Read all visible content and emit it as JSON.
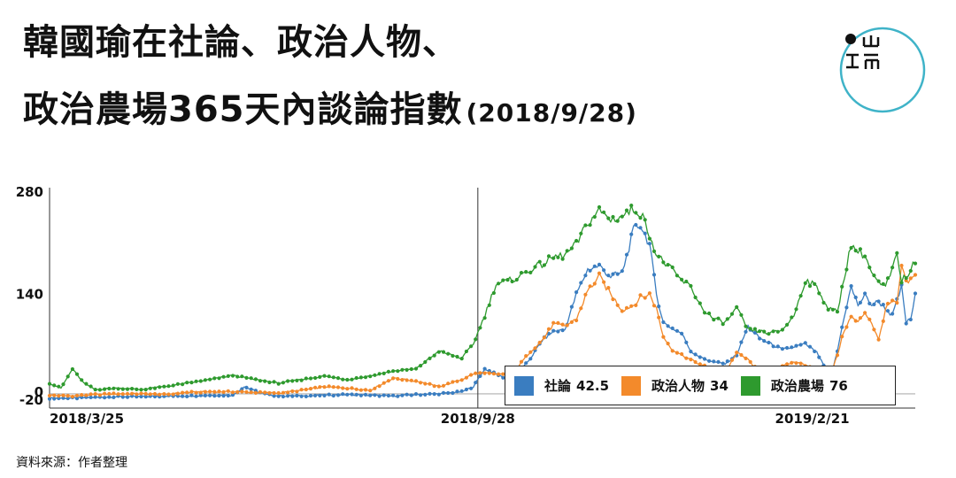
{
  "title": {
    "line1": "韓國瑜在社論、政治人物、",
    "line2": "政治農場365天內談論指數",
    "date": "(2018/9/28)"
  },
  "source": "資料來源：作者整理",
  "logo": {
    "icon": "publisher-logo"
  },
  "chart_data": {
    "type": "line",
    "title": "韓國瑜在社論、政治人物、政治農場365天內談論指數 (2018/9/28)",
    "xlabel": "",
    "ylabel": "",
    "ylim": [
      -20,
      280
    ],
    "yticks": [
      "280",
      "140",
      "0",
      "-20"
    ],
    "x_start": "2018/3/25",
    "x_end": "2019/3/24",
    "xticks": [
      {
        "label": "2018/3/25",
        "day": 0
      },
      {
        "label": "2018/9/28",
        "day": 187
      },
      {
        "label": "2019/2/21",
        "day": 333
      }
    ],
    "reference_line": {
      "date": "2018/9/28",
      "day": 187
    },
    "grid": false,
    "legend_position": "bottom-right",
    "series": [
      {
        "name": "社論",
        "legend_value": "42.5",
        "color": "#3a7dc0",
        "points": [
          [
            0,
            -6
          ],
          [
            10,
            -6
          ],
          [
            20,
            -5
          ],
          [
            30,
            -4
          ],
          [
            40,
            -4
          ],
          [
            50,
            -3
          ],
          [
            60,
            -3
          ],
          [
            70,
            -2
          ],
          [
            80,
            -2
          ],
          [
            85,
            10
          ],
          [
            90,
            4
          ],
          [
            95,
            -1
          ],
          [
            100,
            -3
          ],
          [
            110,
            -3
          ],
          [
            120,
            -2
          ],
          [
            130,
            -1
          ],
          [
            140,
            -2
          ],
          [
            150,
            -3
          ],
          [
            160,
            -1
          ],
          [
            170,
            0
          ],
          [
            180,
            3
          ],
          [
            185,
            10
          ],
          [
            190,
            35
          ],
          [
            195,
            28
          ],
          [
            200,
            20
          ],
          [
            205,
            30
          ],
          [
            210,
            50
          ],
          [
            215,
            75
          ],
          [
            220,
            88
          ],
          [
            225,
            90
          ],
          [
            230,
            140
          ],
          [
            235,
            175
          ],
          [
            240,
            180
          ],
          [
            245,
            165
          ],
          [
            250,
            170
          ],
          [
            255,
            230
          ],
          [
            258,
            238
          ],
          [
            262,
            210
          ],
          [
            265,
            140
          ],
          [
            268,
            100
          ],
          [
            272,
            92
          ],
          [
            276,
            85
          ],
          [
            280,
            60
          ],
          [
            285,
            50
          ],
          [
            290,
            45
          ],
          [
            295,
            42
          ],
          [
            300,
            55
          ],
          [
            305,
            95
          ],
          [
            310,
            78
          ],
          [
            315,
            70
          ],
          [
            320,
            62
          ],
          [
            325,
            66
          ],
          [
            330,
            70
          ],
          [
            335,
            58
          ],
          [
            338,
            40
          ],
          [
            341,
            22
          ],
          [
            344,
            60
          ],
          [
            347,
            110
          ],
          [
            350,
            150
          ],
          [
            353,
            125
          ],
          [
            356,
            138
          ],
          [
            359,
            125
          ],
          [
            362,
            130
          ],
          [
            365,
            120
          ],
          [
            368,
            110
          ],
          [
            370,
            130
          ],
          [
            372,
            150
          ],
          [
            374,
            100
          ],
          [
            376,
            105
          ],
          [
            378,
            138
          ]
        ]
      },
      {
        "name": "政治人物",
        "legend_value": "34",
        "color": "#f38a2b",
        "points": [
          [
            0,
            -2
          ],
          [
            10,
            -3
          ],
          [
            20,
            -1
          ],
          [
            30,
            0
          ],
          [
            40,
            0
          ],
          [
            50,
            -1
          ],
          [
            60,
            2
          ],
          [
            70,
            3
          ],
          [
            80,
            3
          ],
          [
            90,
            2
          ],
          [
            100,
            1
          ],
          [
            110,
            5
          ],
          [
            120,
            10
          ],
          [
            130,
            8
          ],
          [
            140,
            5
          ],
          [
            150,
            22
          ],
          [
            160,
            18
          ],
          [
            170,
            10
          ],
          [
            180,
            20
          ],
          [
            185,
            28
          ],
          [
            190,
            30
          ],
          [
            195,
            27
          ],
          [
            200,
            28
          ],
          [
            205,
            40
          ],
          [
            210,
            60
          ],
          [
            215,
            75
          ],
          [
            220,
            98
          ],
          [
            225,
            95
          ],
          [
            230,
            105
          ],
          [
            235,
            145
          ],
          [
            240,
            165
          ],
          [
            245,
            140
          ],
          [
            250,
            118
          ],
          [
            255,
            125
          ],
          [
            258,
            135
          ],
          [
            262,
            140
          ],
          [
            265,
            120
          ],
          [
            268,
            80
          ],
          [
            272,
            62
          ],
          [
            276,
            55
          ],
          [
            280,
            48
          ],
          [
            285,
            40
          ],
          [
            290,
            35
          ],
          [
            295,
            30
          ],
          [
            300,
            58
          ],
          [
            305,
            48
          ],
          [
            310,
            30
          ],
          [
            315,
            30
          ],
          [
            320,
            40
          ],
          [
            325,
            45
          ],
          [
            330,
            40
          ],
          [
            335,
            35
          ],
          [
            338,
            30
          ],
          [
            341,
            25
          ],
          [
            344,
            55
          ],
          [
            347,
            90
          ],
          [
            350,
            108
          ],
          [
            353,
            100
          ],
          [
            356,
            115
          ],
          [
            359,
            100
          ],
          [
            362,
            75
          ],
          [
            365,
            120
          ],
          [
            368,
            130
          ],
          [
            370,
            125
          ],
          [
            372,
            180
          ],
          [
            374,
            155
          ],
          [
            376,
            160
          ],
          [
            378,
            165
          ]
        ]
      },
      {
        "name": "政治農場",
        "legend_value": "76",
        "color": "#2e9a2e",
        "points": [
          [
            0,
            15
          ],
          [
            5,
            8
          ],
          [
            10,
            35
          ],
          [
            15,
            15
          ],
          [
            20,
            6
          ],
          [
            30,
            8
          ],
          [
            40,
            6
          ],
          [
            50,
            10
          ],
          [
            60,
            15
          ],
          [
            70,
            20
          ],
          [
            80,
            26
          ],
          [
            90,
            20
          ],
          [
            100,
            15
          ],
          [
            110,
            20
          ],
          [
            120,
            25
          ],
          [
            130,
            20
          ],
          [
            140,
            25
          ],
          [
            150,
            32
          ],
          [
            160,
            35
          ],
          [
            170,
            60
          ],
          [
            180,
            50
          ],
          [
            185,
            70
          ],
          [
            190,
            110
          ],
          [
            195,
            155
          ],
          [
            200,
            158
          ],
          [
            205,
            165
          ],
          [
            210,
            175
          ],
          [
            215,
            182
          ],
          [
            220,
            192
          ],
          [
            225,
            195
          ],
          [
            230,
            210
          ],
          [
            235,
            240
          ],
          [
            240,
            258
          ],
          [
            245,
            245
          ],
          [
            250,
            250
          ],
          [
            255,
            260
          ],
          [
            258,
            255
          ],
          [
            262,
            225
          ],
          [
            265,
            195
          ],
          [
            270,
            180
          ],
          [
            275,
            162
          ],
          [
            280,
            150
          ],
          [
            285,
            120
          ],
          [
            290,
            105
          ],
          [
            295,
            100
          ],
          [
            300,
            120
          ],
          [
            305,
            90
          ],
          [
            310,
            88
          ],
          [
            315,
            85
          ],
          [
            320,
            90
          ],
          [
            325,
            110
          ],
          [
            330,
            160
          ],
          [
            335,
            150
          ],
          [
            340,
            120
          ],
          [
            344,
            115
          ],
          [
            347,
            165
          ],
          [
            350,
            210
          ],
          [
            353,
            200
          ],
          [
            356,
            195
          ],
          [
            359,
            170
          ],
          [
            362,
            155
          ],
          [
            365,
            150
          ],
          [
            368,
            175
          ],
          [
            370,
            195
          ],
          [
            372,
            160
          ],
          [
            374,
            165
          ],
          [
            376,
            175
          ],
          [
            378,
            185
          ]
        ]
      }
    ]
  }
}
